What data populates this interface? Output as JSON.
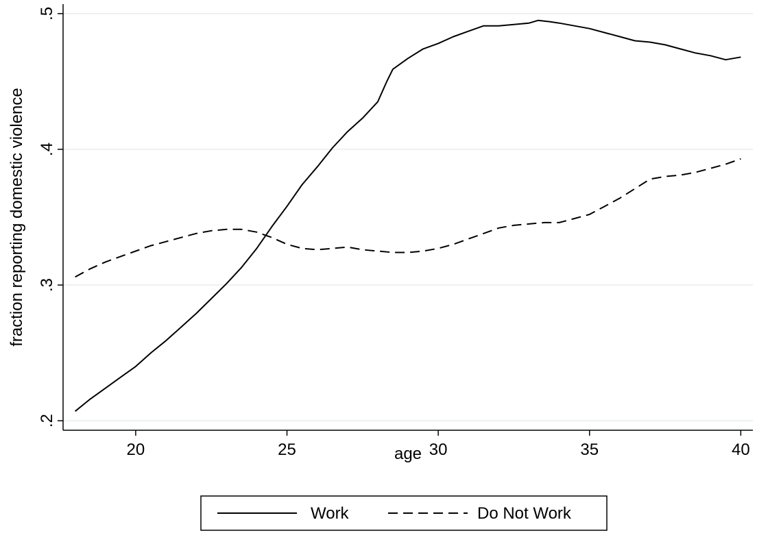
{
  "chart_data": {
    "type": "line",
    "title": "",
    "xlabel": "age",
    "ylabel": "fraction reporting domestic violence",
    "xlim": [
      17.6,
      40.4
    ],
    "ylim": [
      0.193,
      0.507
    ],
    "xticks": [
      20,
      25,
      30,
      35,
      40
    ],
    "xtick_labels": [
      "20",
      "25",
      "30",
      "35",
      "40"
    ],
    "yticks": [
      0.2,
      0.3,
      0.4,
      0.5
    ],
    "ytick_labels": [
      ".2",
      ".3",
      ".4",
      ".5"
    ],
    "grid": "horizontal",
    "legend_position": "bottom",
    "series": [
      {
        "name": "Work",
        "line_style": "solid",
        "color": "#000000",
        "x": [
          18,
          18.5,
          19,
          19.5,
          20,
          20.5,
          21,
          21.5,
          22,
          22.5,
          23,
          23.5,
          24,
          24.5,
          25,
          25.5,
          26,
          26.5,
          27,
          27.5,
          28,
          28.3,
          28.5,
          29,
          29.5,
          30,
          30.5,
          31,
          31.5,
          32,
          32.5,
          33,
          33.3,
          33.7,
          34,
          34.5,
          35,
          35.5,
          36,
          36.5,
          37,
          37.5,
          38,
          38.5,
          39,
          39.5,
          40
        ],
        "y": [
          0.207,
          0.216,
          0.224,
          0.232,
          0.24,
          0.25,
          0.259,
          0.269,
          0.279,
          0.29,
          0.301,
          0.313,
          0.327,
          0.343,
          0.358,
          0.374,
          0.387,
          0.401,
          0.413,
          0.423,
          0.435,
          0.45,
          0.459,
          0.467,
          0.474,
          0.478,
          0.483,
          0.487,
          0.491,
          0.491,
          0.492,
          0.493,
          0.495,
          0.494,
          0.493,
          0.491,
          0.489,
          0.486,
          0.483,
          0.48,
          0.479,
          0.477,
          0.474,
          0.471,
          0.469,
          0.466,
          0.468
        ]
      },
      {
        "name": "Do Not Work",
        "line_style": "dashed",
        "color": "#000000",
        "x": [
          18,
          18.5,
          19,
          19.5,
          20,
          20.5,
          21,
          21.5,
          22,
          22.5,
          23,
          23.5,
          24,
          24.5,
          25,
          25.5,
          26,
          26.5,
          27,
          27.5,
          28,
          28.5,
          29,
          29.5,
          30,
          30.5,
          31,
          31.5,
          32,
          32.5,
          33,
          33.5,
          34,
          34.5,
          35,
          35.5,
          36,
          36.5,
          37,
          37.5,
          38,
          38.5,
          39,
          39.5,
          40
        ],
        "y": [
          0.306,
          0.312,
          0.317,
          0.321,
          0.325,
          0.329,
          0.332,
          0.335,
          0.338,
          0.34,
          0.341,
          0.341,
          0.339,
          0.335,
          0.33,
          0.327,
          0.326,
          0.327,
          0.328,
          0.326,
          0.325,
          0.324,
          0.324,
          0.325,
          0.327,
          0.33,
          0.334,
          0.338,
          0.342,
          0.344,
          0.345,
          0.346,
          0.346,
          0.349,
          0.352,
          0.358,
          0.364,
          0.371,
          0.378,
          0.38,
          0.381,
          0.383,
          0.386,
          0.389,
          0.393
        ]
      }
    ]
  }
}
